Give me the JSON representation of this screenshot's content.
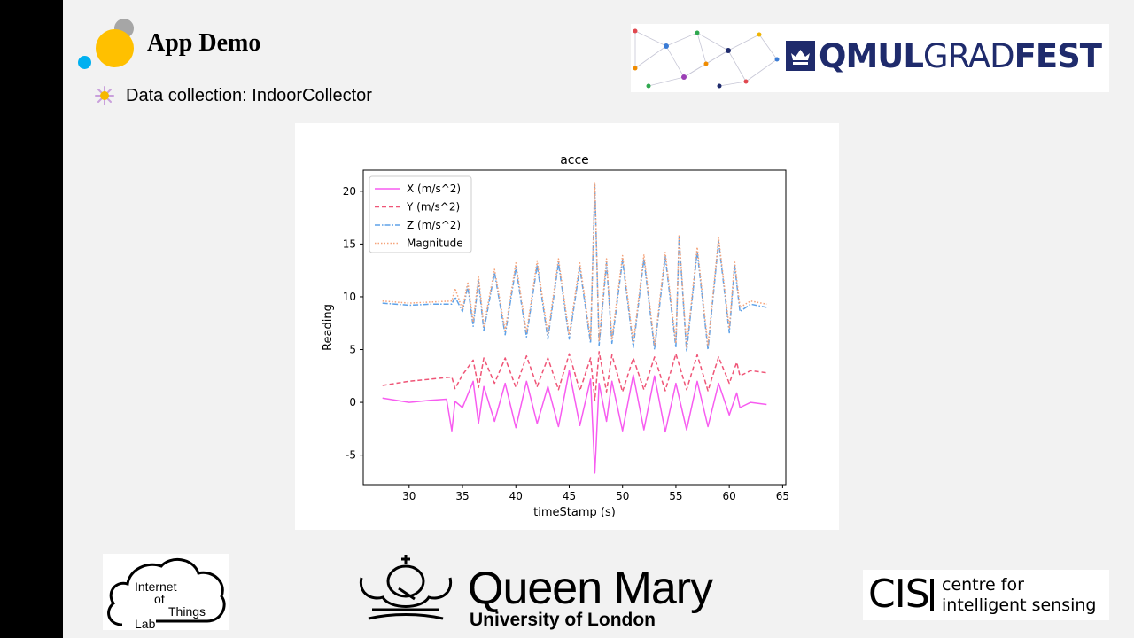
{
  "slide": {
    "title": "App Demo",
    "bullet": "Data collection: IndoorCollector"
  },
  "logos": {
    "gradfest": {
      "part1": "QMUL",
      "part2": "GRAD",
      "part3": "FEST"
    },
    "iot": {
      "line1": "Internet",
      "line2": "of",
      "line3": "Things",
      "line4": "Lab"
    },
    "qm": {
      "name": "Queen Mary",
      "sub": "University of London"
    },
    "cis": {
      "mark": "CIS",
      "line1": "centre for",
      "line2": "intelligent sensing"
    }
  },
  "colors": {
    "X (m/s^2)": "#f75cf0",
    "Y (m/s^2)": "#ef5577",
    "Z (m/s^2)": "#5fa2e8",
    "Magnitude": "#f5a37a"
  },
  "chart_data": {
    "type": "line",
    "title": "acce",
    "xlabel": "timeStamp (s)",
    "ylabel": "Reading",
    "xlim": [
      25.7,
      65.3
    ],
    "ylim": [
      -7.8,
      22.0
    ],
    "xticks": [
      30,
      35,
      40,
      45,
      50,
      55,
      60,
      65
    ],
    "yticks": [
      -5,
      0,
      5,
      10,
      15,
      20
    ],
    "grid": false,
    "legend": "top-left",
    "series": [
      {
        "name": "X (m/s^2)",
        "style": "solid",
        "x": [
          27.5,
          30,
          32,
          33.5,
          34,
          34.3,
          35,
          36,
          36.5,
          37,
          38,
          39,
          40,
          41,
          42,
          43,
          44,
          45,
          46,
          47,
          47.4,
          47.8,
          48.5,
          49,
          50,
          51,
          52,
          53,
          54,
          55,
          56,
          57,
          58,
          59,
          60,
          60.7,
          61,
          62,
          63.5
        ],
        "y": [
          0.4,
          0.0,
          0.2,
          0.3,
          -2.7,
          0.1,
          -0.5,
          2.0,
          -2.0,
          1.5,
          -1.8,
          1.8,
          -2.4,
          2.0,
          -2.0,
          1.5,
          -2.3,
          3.0,
          -2.2,
          2.2,
          -6.7,
          1.8,
          -1.8,
          2.0,
          -2.7,
          2.6,
          -2.6,
          2.5,
          -2.8,
          1.8,
          -2.6,
          2.0,
          -2.3,
          1.8,
          -1.2,
          0.9,
          -0.5,
          0.0,
          -0.2
        ]
      },
      {
        "name": "Y (m/s^2)",
        "style": "dashed",
        "x": [
          27.5,
          30,
          32,
          34,
          34.3,
          35,
          36,
          36.5,
          37,
          38,
          39,
          40,
          41,
          42,
          43,
          44,
          45,
          46,
          47,
          47.4,
          47.8,
          48.5,
          49,
          50,
          51,
          52,
          53,
          54,
          55,
          56,
          57,
          58,
          59,
          60,
          60.7,
          61,
          62,
          63.5
        ],
        "y": [
          1.6,
          2.0,
          2.2,
          2.4,
          1.3,
          2.6,
          4.0,
          1.4,
          4.2,
          1.8,
          4.2,
          1.4,
          4.4,
          1.5,
          4.2,
          1.2,
          4.6,
          1.1,
          4.2,
          0.2,
          4.8,
          1.0,
          4.5,
          1.0,
          4.2,
          1.2,
          4.3,
          1.1,
          4.6,
          1.2,
          4.5,
          1.1,
          4.3,
          1.8,
          3.8,
          2.5,
          3.0,
          2.8
        ]
      },
      {
        "name": "Z (m/s^2)",
        "style": "dashdot",
        "x": [
          27.5,
          30,
          32,
          34,
          34.3,
          35,
          35.5,
          36,
          36.5,
          37,
          38,
          39,
          40,
          41,
          42,
          43,
          44,
          45,
          46,
          47,
          47.4,
          47.8,
          48.5,
          49,
          50,
          51,
          52,
          53,
          54,
          55,
          55.3,
          56,
          57,
          58,
          59,
          60,
          60.5,
          61,
          62,
          63.5
        ],
        "y": [
          9.4,
          9.2,
          9.3,
          9.3,
          10.0,
          8.6,
          11.0,
          7.2,
          11.5,
          6.8,
          12.3,
          6.4,
          12.8,
          6.2,
          13.0,
          6.0,
          13.2,
          6.0,
          12.8,
          5.6,
          20.6,
          5.4,
          13.2,
          5.6,
          13.5,
          5.2,
          13.6,
          5.0,
          13.8,
          5.2,
          15.6,
          4.8,
          14.3,
          5.0,
          15.3,
          6.6,
          13.0,
          8.6,
          9.3,
          9.0
        ]
      },
      {
        "name": "Magnitude",
        "style": "dotted",
        "x": [
          27.5,
          30,
          32,
          34,
          34.3,
          35,
          35.5,
          36,
          36.5,
          37,
          38,
          39,
          40,
          41,
          42,
          43,
          44,
          45,
          46,
          47,
          47.4,
          47.8,
          48.5,
          49,
          50,
          51,
          52,
          53,
          54,
          55,
          55.3,
          56,
          57,
          58,
          59,
          60,
          60.5,
          61,
          62,
          63.5
        ],
        "y": [
          9.6,
          9.4,
          9.5,
          9.6,
          10.8,
          8.8,
          11.4,
          7.6,
          12.0,
          7.2,
          12.6,
          6.8,
          13.2,
          6.6,
          13.4,
          6.4,
          13.6,
          6.4,
          13.2,
          6.0,
          20.8,
          5.8,
          13.6,
          6.0,
          13.9,
          5.6,
          14.0,
          5.4,
          14.2,
          5.6,
          15.9,
          5.2,
          14.7,
          5.4,
          15.6,
          7.0,
          13.4,
          9.0,
          9.6,
          9.3
        ]
      }
    ]
  }
}
